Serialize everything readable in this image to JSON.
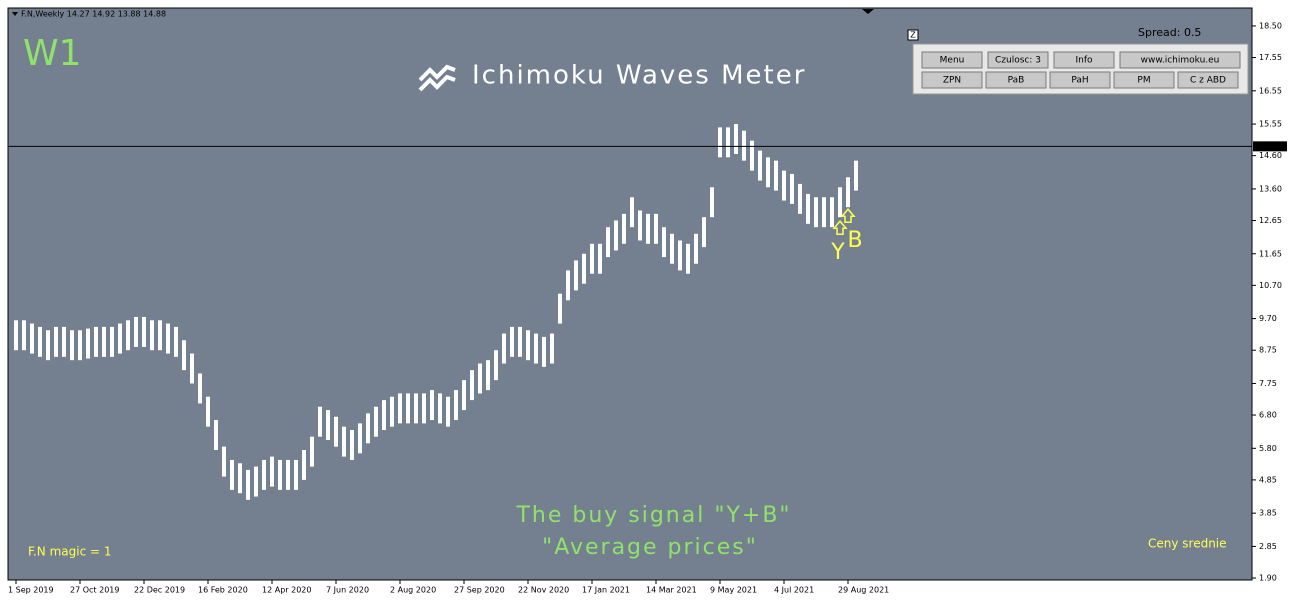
{
  "header": {
    "symbol_line": "F.N,Weekly  14.27 14.92 13.88 14.88",
    "timeframe": "W1",
    "brand": "Ichimoku Waves Meter",
    "spread": "Spread: 0.5",
    "z_button": "Z"
  },
  "panel": {
    "buttons": [
      [
        "Menu",
        "Czulosc: 3",
        "Info",
        "www.ichimoku.eu"
      ],
      [
        "ZPN",
        "PaB",
        "PaH",
        "PM",
        "C z ABD"
      ]
    ]
  },
  "footer": {
    "magic": "F.N magic = 1",
    "mode": "Ceny srednie",
    "caption": [
      "The buy signal \"Y+B\"",
      "\"Average prices\""
    ]
  },
  "chart_data": {
    "type": "range_bar",
    "color": "#ffffff",
    "categories": [
      "1 Sep 2019",
      null,
      null,
      null,
      null,
      null,
      null,
      null,
      "27 Oct 2019",
      null,
      null,
      null,
      null,
      null,
      null,
      null,
      "22 Dec 2019",
      null,
      null,
      null,
      null,
      null,
      null,
      null,
      "16 Feb 2020",
      null,
      null,
      null,
      null,
      null,
      null,
      null,
      "12 Apr 2020",
      null,
      null,
      null,
      null,
      null,
      null,
      null,
      "7 Jun 2020",
      null,
      null,
      null,
      null,
      null,
      null,
      null,
      "2 Aug 2020",
      null,
      null,
      null,
      null,
      null,
      null,
      null,
      "27 Sep 2020",
      null,
      null,
      null,
      null,
      null,
      null,
      null,
      "22 Nov 2020",
      null,
      null,
      null,
      null,
      null,
      null,
      null,
      "17 Jan 2021",
      null,
      null,
      null,
      null,
      null,
      null,
      null,
      "14 Mar 2021",
      null,
      null,
      null,
      null,
      null,
      null,
      null,
      "9 May 2021",
      null,
      null,
      null,
      null,
      null,
      null,
      null,
      "4 Jul 2021",
      null,
      null,
      null,
      null,
      null,
      null,
      null,
      "29 Aug 2021",
      null
    ],
    "high": [
      9.65,
      9.65,
      9.55,
      9.45,
      9.35,
      9.45,
      9.45,
      9.35,
      9.35,
      9.4,
      9.45,
      9.45,
      9.45,
      9.55,
      9.65,
      9.75,
      9.75,
      9.65,
      9.65,
      9.55,
      9.45,
      9.05,
      8.65,
      8.05,
      7.35,
      6.65,
      5.85,
      5.45,
      5.35,
      5.15,
      5.25,
      5.45,
      5.55,
      5.45,
      5.45,
      5.45,
      5.75,
      6.15,
      7.05,
      6.95,
      6.75,
      6.45,
      6.35,
      6.55,
      6.85,
      7.05,
      7.25,
      7.35,
      7.45,
      7.45,
      7.45,
      7.45,
      7.55,
      7.45,
      7.35,
      7.55,
      7.85,
      8.15,
      8.35,
      8.45,
      8.75,
      9.25,
      9.45,
      9.45,
      9.35,
      9.25,
      9.15,
      9.25,
      10.45,
      11.15,
      11.45,
      11.65,
      11.95,
      11.95,
      12.45,
      12.65,
      12.85,
      13.35,
      12.95,
      12.85,
      12.85,
      12.45,
      12.25,
      12.05,
      11.95,
      12.25,
      12.75,
      13.65,
      15.45,
      15.45,
      15.55,
      15.35,
      15.05,
      14.75,
      14.55,
      14.45,
      14.15,
      14.05,
      13.75,
      13.45,
      13.35,
      13.35,
      13.35,
      13.65,
      13.95,
      14.45
    ],
    "low": [
      8.75,
      8.75,
      8.65,
      8.55,
      8.45,
      8.55,
      8.55,
      8.45,
      8.45,
      8.5,
      8.55,
      8.55,
      8.55,
      8.65,
      8.75,
      8.85,
      8.85,
      8.75,
      8.75,
      8.65,
      8.55,
      8.15,
      7.75,
      7.15,
      6.45,
      5.75,
      4.95,
      4.55,
      4.45,
      4.25,
      4.35,
      4.55,
      4.65,
      4.55,
      4.55,
      4.55,
      4.85,
      5.25,
      6.15,
      6.05,
      5.85,
      5.55,
      5.45,
      5.65,
      5.95,
      6.15,
      6.35,
      6.45,
      6.55,
      6.55,
      6.55,
      6.55,
      6.65,
      6.55,
      6.45,
      6.65,
      6.95,
      7.25,
      7.45,
      7.55,
      7.85,
      8.35,
      8.55,
      8.55,
      8.45,
      8.35,
      8.25,
      8.35,
      9.55,
      10.25,
      10.55,
      10.75,
      11.05,
      11.05,
      11.55,
      11.75,
      11.95,
      12.45,
      12.05,
      11.95,
      11.95,
      11.55,
      11.35,
      11.15,
      11.05,
      11.35,
      11.85,
      12.75,
      14.55,
      14.55,
      14.65,
      14.45,
      14.15,
      13.85,
      13.65,
      13.55,
      13.25,
      13.15,
      12.85,
      12.55,
      12.45,
      12.45,
      12.45,
      12.75,
      13.05,
      13.55
    ],
    "ylim": [
      1.84,
      19.04
    ],
    "yticks": [
      {
        "value": 18.5,
        "label": "18.50"
      },
      17.55,
      16.55,
      15.55,
      {
        "value": 14.6,
        "label": "14.60"
      },
      {
        "value": 13.6,
        "label": "13.60"
      },
      12.65,
      11.65,
      {
        "value": 10.7,
        "label": "10.70"
      },
      {
        "value": 9.7,
        "label": "9.70"
      },
      8.75,
      7.75,
      {
        "value": 6.8,
        "label": "6.80"
      },
      {
        "value": 5.8,
        "label": "5.80"
      },
      4.85,
      3.85,
      2.85,
      {
        "value": 1.9,
        "label": "1.90"
      }
    ],
    "last_price": 14.88,
    "signals": [
      {
        "label": "Y",
        "index": 104
      },
      {
        "label": "B",
        "index": 104
      }
    ]
  }
}
